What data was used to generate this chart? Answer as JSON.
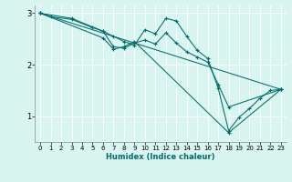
{
  "title": "",
  "xlabel": "Humidex (Indice chaleur)",
  "xlim": [
    -0.5,
    23.5
  ],
  "ylim": [
    0.5,
    3.15
  ],
  "yticks": [
    1,
    2,
    3
  ],
  "xticks": [
    0,
    1,
    2,
    3,
    4,
    5,
    6,
    7,
    8,
    9,
    10,
    11,
    12,
    13,
    14,
    15,
    16,
    17,
    18,
    19,
    20,
    21,
    22,
    23
  ],
  "bg_color": "#d8f5f0",
  "line_color": "#006b6b",
  "lines": [
    {
      "x": [
        0,
        1,
        3,
        5,
        6,
        7,
        8,
        9,
        10,
        11,
        12,
        13,
        14,
        15,
        16,
        17,
        18,
        19,
        20,
        21,
        22,
        23
      ],
      "y": [
        3.0,
        2.93,
        2.88,
        2.72,
        2.65,
        2.55,
        2.45,
        2.38,
        2.68,
        2.6,
        2.9,
        2.85,
        2.55,
        2.28,
        2.12,
        1.55,
        0.72,
        0.98,
        1.15,
        1.35,
        1.5,
        1.52
      ]
    },
    {
      "x": [
        0,
        3,
        6,
        7,
        8,
        9,
        10,
        11,
        12,
        13,
        14,
        15,
        16,
        17,
        18,
        23
      ],
      "y": [
        3.0,
        2.9,
        2.65,
        2.35,
        2.32,
        2.42,
        2.48,
        2.4,
        2.62,
        2.42,
        2.25,
        2.15,
        2.05,
        1.62,
        1.18,
        1.52
      ]
    },
    {
      "x": [
        0,
        6,
        7,
        8,
        9,
        18,
        23
      ],
      "y": [
        3.0,
        2.52,
        2.3,
        2.35,
        2.45,
        0.68,
        1.52
      ]
    },
    {
      "x": [
        0,
        23
      ],
      "y": [
        3.0,
        1.52
      ]
    }
  ]
}
